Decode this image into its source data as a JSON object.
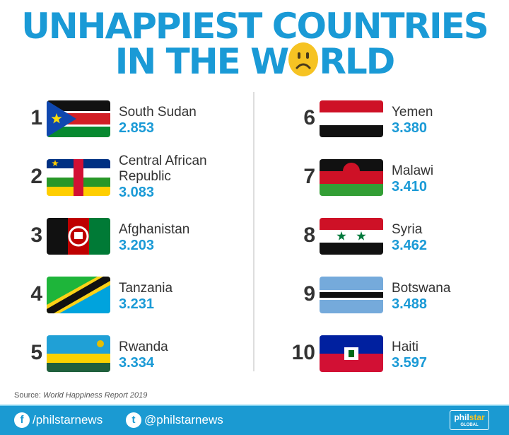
{
  "title": {
    "line1": "UNHAPPIEST COUNTRIES",
    "line2_a": "IN THE W",
    "line2_b": "RLD",
    "emoji": "sad-face-icon"
  },
  "colors": {
    "accent": "#1a9ad6",
    "footer": "#1b9ad2",
    "emoji": "#f6c323"
  },
  "countries": [
    {
      "rank": "1",
      "name": "South Sudan",
      "score": "2.853",
      "flag": "south-sudan"
    },
    {
      "rank": "2",
      "name": "Central African Republic",
      "score": "3.083",
      "flag": "central-african-republic"
    },
    {
      "rank": "3",
      "name": "Afghanistan",
      "score": "3.203",
      "flag": "afghanistan"
    },
    {
      "rank": "4",
      "name": "Tanzania",
      "score": "3.231",
      "flag": "tanzania"
    },
    {
      "rank": "5",
      "name": "Rwanda",
      "score": "3.334",
      "flag": "rwanda"
    },
    {
      "rank": "6",
      "name": "Yemen",
      "score": "3.380",
      "flag": "yemen"
    },
    {
      "rank": "7",
      "name": "Malawi",
      "score": "3.410",
      "flag": "malawi"
    },
    {
      "rank": "8",
      "name": "Syria",
      "score": "3.462",
      "flag": "syria"
    },
    {
      "rank": "9",
      "name": "Botswana",
      "score": "3.488",
      "flag": "botswana"
    },
    {
      "rank": "10",
      "name": "Haiti",
      "score": "3.597",
      "flag": "haiti"
    }
  ],
  "source": {
    "label": "Source: ",
    "value": "World Happiness Report 2019"
  },
  "footer": {
    "facebook": "/philstarnews",
    "twitter": "@philstarnews",
    "logo": {
      "a": "phil",
      "b": "star",
      "c": "GLOBAL"
    }
  }
}
